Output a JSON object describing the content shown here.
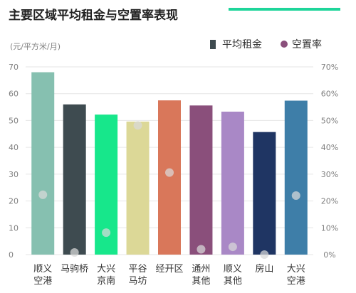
{
  "chart_data": {
    "type": "bar",
    "title": "主要区域平均租金与空置率表现",
    "unit_label": "(元/平方米/月)",
    "categories": [
      [
        "顺义",
        "空港"
      ],
      [
        "马驹桥"
      ],
      [
        "大兴",
        "京南"
      ],
      [
        "平谷",
        "马坊"
      ],
      [
        "经开区"
      ],
      [
        "通州",
        "其他"
      ],
      [
        "顺义",
        "其他"
      ],
      [
        "房山"
      ],
      [
        "大兴",
        "空港"
      ]
    ],
    "series": [
      {
        "name": "平均租金",
        "type": "bar",
        "axis": "left",
        "values": [
          68.0,
          56.0,
          52.2,
          49.6,
          57.5,
          55.6,
          53.3,
          45.7,
          57.4
        ]
      },
      {
        "name": "空置率",
        "type": "scatter",
        "axis": "right",
        "values": [
          22.3,
          0.8,
          8.2,
          48.2,
          30.6,
          2.0,
          2.9,
          0.0,
          22.0
        ]
      }
    ],
    "left_axis": {
      "ylim": [
        0,
        70
      ],
      "ticks": [
        "0",
        "10",
        "20",
        "30",
        "40",
        "50",
        "60",
        "70"
      ]
    },
    "right_axis": {
      "ylim": [
        0,
        70
      ],
      "ticks": [
        "0%",
        "10%",
        "20%",
        "30%",
        "40%",
        "50%",
        "60%",
        "70%"
      ]
    },
    "grid": true,
    "legend_position": "top-right",
    "colors": {
      "bars": [
        "#86c0b0",
        "#3e4b50",
        "#17e78b",
        "#dcd897",
        "#d9775a",
        "#8a4f7b",
        "#a988c6",
        "#1f3563",
        "#3e7ea8"
      ],
      "dot": "#d9d9d9",
      "legend_bar": "#3e4b50",
      "legend_dot": "#8a4f7b",
      "title_accent": "#1ed59a",
      "axis_text": "#7f7f7f",
      "title_text": "#222222",
      "grid": "#e6e6e6"
    }
  }
}
